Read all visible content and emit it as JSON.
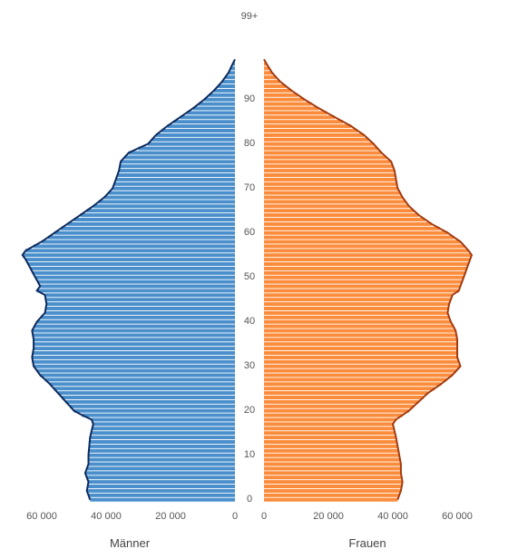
{
  "chart_data": {
    "type": "bar",
    "subtype": "population-pyramid",
    "title": "",
    "age_axis": {
      "min": 0,
      "max": 99,
      "tick_values": [
        0,
        10,
        20,
        30,
        40,
        50,
        60,
        70,
        80,
        90
      ],
      "top_label": "99+"
    },
    "x_ticks_left": [
      "60 000",
      "40 000",
      "20 000",
      "0"
    ],
    "x_ticks_right": [
      "0",
      "20 000",
      "40 000",
      "60 000"
    ],
    "x_tick_values": [
      60000,
      40000,
      20000,
      0
    ],
    "xlim": [
      0,
      68000
    ],
    "grid": false,
    "series": [
      {
        "name": "Männer",
        "side": "left",
        "color": "#4a8fcb",
        "edge_color": "#0d2a5e",
        "keypoints": [
          [
            0,
            45000
          ],
          [
            2,
            46000
          ],
          [
            4,
            45500
          ],
          [
            6,
            46500
          ],
          [
            8,
            45500
          ],
          [
            10,
            45500
          ],
          [
            14,
            45000
          ],
          [
            17,
            44000
          ],
          [
            18,
            44500
          ],
          [
            19,
            47500
          ],
          [
            20,
            50000
          ],
          [
            22,
            52500
          ],
          [
            24,
            55000
          ],
          [
            26,
            57500
          ],
          [
            28,
            60500
          ],
          [
            30,
            62500
          ],
          [
            32,
            63000
          ],
          [
            34,
            62500
          ],
          [
            36,
            62500
          ],
          [
            38,
            63000
          ],
          [
            40,
            61500
          ],
          [
            42,
            59000
          ],
          [
            44,
            58500
          ],
          [
            46,
            59000
          ],
          [
            47,
            61500
          ],
          [
            48,
            60500
          ],
          [
            50,
            62000
          ],
          [
            52,
            63500
          ],
          [
            54,
            65000
          ],
          [
            55,
            66000
          ],
          [
            56,
            65000
          ],
          [
            58,
            60000
          ],
          [
            60,
            56000
          ],
          [
            62,
            52000
          ],
          [
            64,
            48000
          ],
          [
            66,
            44000
          ],
          [
            68,
            40500
          ],
          [
            70,
            38000
          ],
          [
            72,
            37000
          ],
          [
            74,
            36000
          ],
          [
            76,
            35500
          ],
          [
            78,
            33000
          ],
          [
            80,
            27000
          ],
          [
            82,
            24500
          ],
          [
            84,
            21000
          ],
          [
            86,
            17000
          ],
          [
            88,
            13000
          ],
          [
            90,
            9500
          ],
          [
            92,
            6500
          ],
          [
            94,
            4000
          ],
          [
            96,
            2000
          ],
          [
            98,
            700
          ],
          [
            99,
            0
          ]
        ]
      },
      {
        "name": "Frauen",
        "side": "right",
        "color": "#fb8c3c",
        "edge_color": "#a33a10",
        "keypoints": [
          [
            0,
            41500
          ],
          [
            2,
            42500
          ],
          [
            4,
            43000
          ],
          [
            6,
            42500
          ],
          [
            8,
            42500
          ],
          [
            10,
            42000
          ],
          [
            14,
            41000
          ],
          [
            17,
            40000
          ],
          [
            18,
            41000
          ],
          [
            19,
            43000
          ],
          [
            20,
            45000
          ],
          [
            22,
            48000
          ],
          [
            24,
            51000
          ],
          [
            26,
            55000
          ],
          [
            28,
            58500
          ],
          [
            30,
            61000
          ],
          [
            32,
            60000
          ],
          [
            34,
            60000
          ],
          [
            36,
            60000
          ],
          [
            38,
            59500
          ],
          [
            40,
            58000
          ],
          [
            42,
            57000
          ],
          [
            44,
            57500
          ],
          [
            46,
            58500
          ],
          [
            47,
            60500
          ],
          [
            48,
            61000
          ],
          [
            50,
            62000
          ],
          [
            52,
            63000
          ],
          [
            54,
            64000
          ],
          [
            55,
            64500
          ],
          [
            56,
            63500
          ],
          [
            58,
            61000
          ],
          [
            60,
            57000
          ],
          [
            62,
            52000
          ],
          [
            64,
            48000
          ],
          [
            66,
            45000
          ],
          [
            68,
            43000
          ],
          [
            70,
            41500
          ],
          [
            72,
            41000
          ],
          [
            74,
            40500
          ],
          [
            76,
            39500
          ],
          [
            78,
            36500
          ],
          [
            80,
            34000
          ],
          [
            82,
            31000
          ],
          [
            84,
            27000
          ],
          [
            86,
            22000
          ],
          [
            88,
            17000
          ],
          [
            90,
            12500
          ],
          [
            92,
            8500
          ],
          [
            94,
            5000
          ],
          [
            96,
            2500
          ],
          [
            98,
            800
          ],
          [
            99,
            0
          ]
        ]
      }
    ]
  }
}
